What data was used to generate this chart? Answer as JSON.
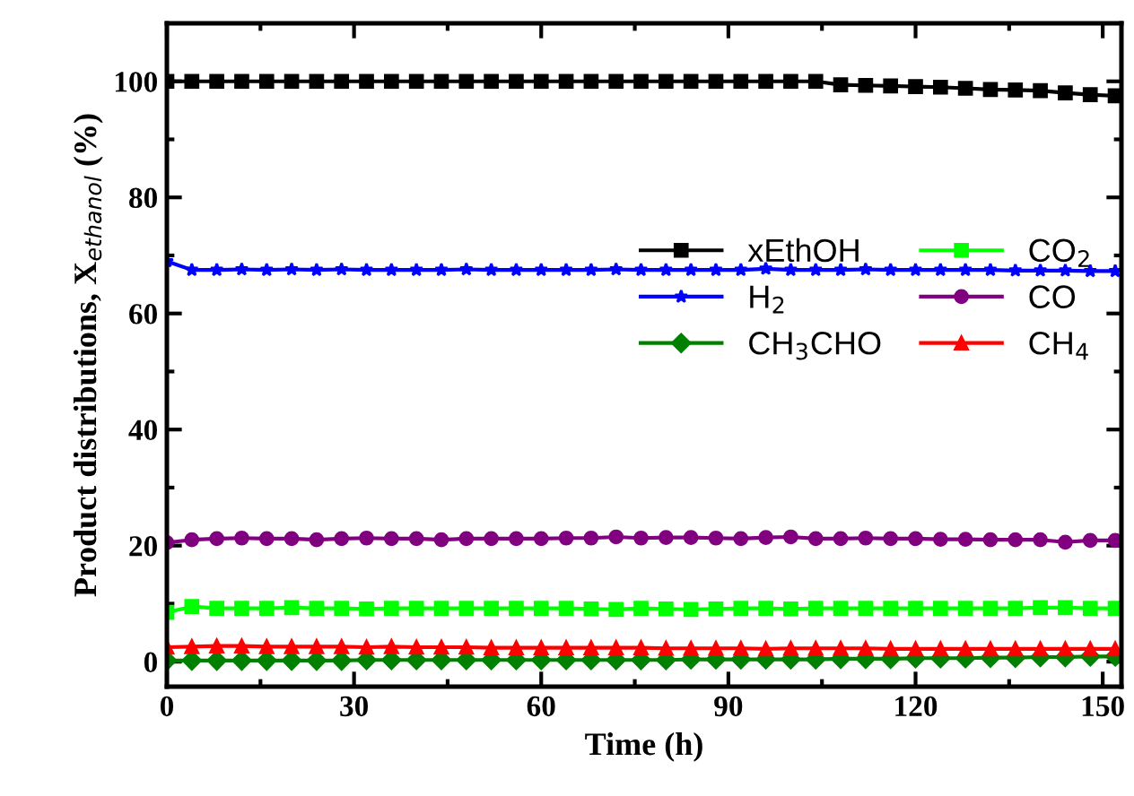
{
  "chart_data": {
    "type": "line",
    "xlabel": "Time (h)",
    "ylabel": "Product distributions, X$_{ethanol}$ (%)",
    "x": [
      0,
      4,
      8,
      12,
      16,
      20,
      24,
      28,
      32,
      36,
      40,
      44,
      48,
      52,
      56,
      60,
      64,
      68,
      72,
      76,
      80,
      84,
      88,
      92,
      96,
      100,
      104,
      108,
      112,
      116,
      120,
      124,
      128,
      132,
      136,
      140,
      144,
      148,
      152
    ],
    "xlim": [
      0,
      153
    ],
    "ylim": [
      -4.3,
      110
    ],
    "xticks": [
      0,
      30,
      60,
      90,
      120,
      150
    ],
    "yticks": [
      0,
      20,
      40,
      60,
      80,
      100
    ],
    "grid": false,
    "legend": "top right",
    "series": [
      {
        "name": "xEthOH",
        "color": "#000000",
        "marker": "square",
        "values": [
          100,
          100,
          100,
          100,
          100,
          100,
          100,
          100,
          100,
          100,
          100,
          100,
          100,
          100,
          100,
          100,
          100,
          100,
          100,
          100,
          100,
          100,
          100,
          100,
          100,
          100,
          100,
          99.4,
          99.3,
          99.2,
          99.1,
          99.0,
          98.8,
          98.6,
          98.5,
          98.4,
          98.0,
          97.7,
          97.5
        ]
      },
      {
        "name": "H$_{2}$",
        "color": "#0000ff",
        "marker": "star",
        "values": [
          69,
          67.5,
          67.5,
          67.6,
          67.5,
          67.6,
          67.5,
          67.6,
          67.5,
          67.5,
          67.5,
          67.5,
          67.6,
          67.5,
          67.5,
          67.5,
          67.5,
          67.5,
          67.6,
          67.5,
          67.5,
          67.5,
          67.5,
          67.5,
          67.7,
          67.5,
          67.5,
          67.5,
          67.6,
          67.5,
          67.5,
          67.5,
          67.5,
          67.5,
          67.4,
          67.4,
          67.4,
          67.3,
          67.3
        ]
      },
      {
        "name": "CH$_{3}$CHO",
        "color": "#008000",
        "marker": "diamond",
        "values": [
          0.2,
          0.2,
          0.2,
          0.2,
          0.2,
          0.2,
          0.2,
          0.2,
          0.3,
          0.3,
          0.3,
          0.3,
          0.3,
          0.3,
          0.3,
          0.3,
          0.3,
          0.3,
          0.3,
          0.3,
          0.3,
          0.4,
          0.4,
          0.4,
          0.4,
          0.4,
          0.4,
          0.5,
          0.5,
          0.5,
          0.6,
          0.6,
          0.6,
          0.7,
          0.7,
          0.8,
          0.8,
          0.9,
          0.9
        ]
      },
      {
        "name": "CO$_{2}$",
        "color": "#00ff00",
        "marker": "square",
        "values": [
          8.5,
          9.5,
          9.2,
          9.2,
          9.2,
          9.3,
          9.2,
          9.2,
          9.1,
          9.2,
          9.2,
          9.2,
          9.2,
          9.2,
          9.2,
          9.2,
          9.2,
          9.1,
          9.0,
          9.2,
          9.1,
          9.0,
          9.1,
          9.2,
          9.2,
          9.1,
          9.2,
          9.2,
          9.2,
          9.2,
          9.2,
          9.2,
          9.2,
          9.2,
          9.2,
          9.3,
          9.3,
          9.2,
          9.2
        ]
      },
      {
        "name": "CO",
        "color": "#800080",
        "marker": "circle",
        "values": [
          20.5,
          21,
          21.2,
          21.3,
          21.2,
          21.2,
          21,
          21.2,
          21.3,
          21.2,
          21.2,
          21,
          21.2,
          21.2,
          21.2,
          21.2,
          21.3,
          21.3,
          21.5,
          21.3,
          21.4,
          21.4,
          21.3,
          21.2,
          21.4,
          21.5,
          21.2,
          21.2,
          21.3,
          21.2,
          21.2,
          21.1,
          21.1,
          21.0,
          21.0,
          21.0,
          20.6,
          20.9,
          20.9
        ]
      },
      {
        "name": "CH$_{4}$",
        "color": "#ff0000",
        "marker": "triangle",
        "values": [
          2.5,
          2.6,
          2.7,
          2.7,
          2.6,
          2.6,
          2.6,
          2.6,
          2.5,
          2.6,
          2.5,
          2.5,
          2.5,
          2.4,
          2.4,
          2.4,
          2.4,
          2.4,
          2.4,
          2.4,
          2.3,
          2.3,
          2.3,
          2.3,
          2.2,
          2.3,
          2.3,
          2.3,
          2.3,
          2.2,
          2.2,
          2.2,
          2.2,
          2.2,
          2.2,
          2.2,
          2.2,
          2.2,
          2.2
        ]
      }
    ]
  }
}
